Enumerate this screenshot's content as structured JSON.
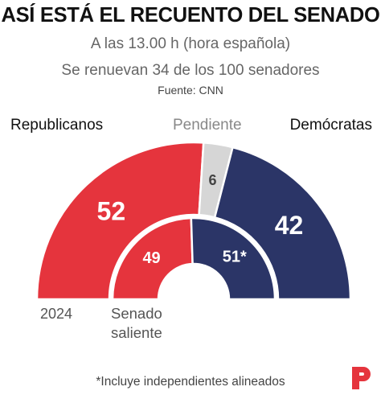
{
  "title": "ASÍ ESTÁ EL RECUENTO DEL SENADO",
  "subtitle_time": "A las 13.00 h (hora española)",
  "subtitle_renewal": "Se renuevan 34 de los 100 senadores",
  "source": "Fuente: CNN",
  "footnote": "*Incluye independientes alineados",
  "colors": {
    "republicans": "#e5343d",
    "democrats": "#2b3567",
    "pending": "#d6d6d6",
    "logo": "#e5343d"
  },
  "logo_icon": "p-logo-icon",
  "chart_data": {
    "type": "semicircle-parliament",
    "total": 100,
    "legend": [
      "Republicanos",
      "Pendiente",
      "Demócratas"
    ],
    "rings": [
      {
        "label": "2024",
        "segments": [
          {
            "party": "Republicanos",
            "seats": 52,
            "text": "52"
          },
          {
            "party": "Pendiente",
            "seats": 6,
            "text": "6"
          },
          {
            "party": "Demócratas",
            "seats": 42,
            "text": "42"
          }
        ]
      },
      {
        "label_line1": "Senado",
        "label_line2": "saliente",
        "segments": [
          {
            "party": "Republicanos",
            "seats": 49,
            "text": "49"
          },
          {
            "party": "Demócratas",
            "seats": 51,
            "text": "51*"
          }
        ]
      }
    ]
  }
}
